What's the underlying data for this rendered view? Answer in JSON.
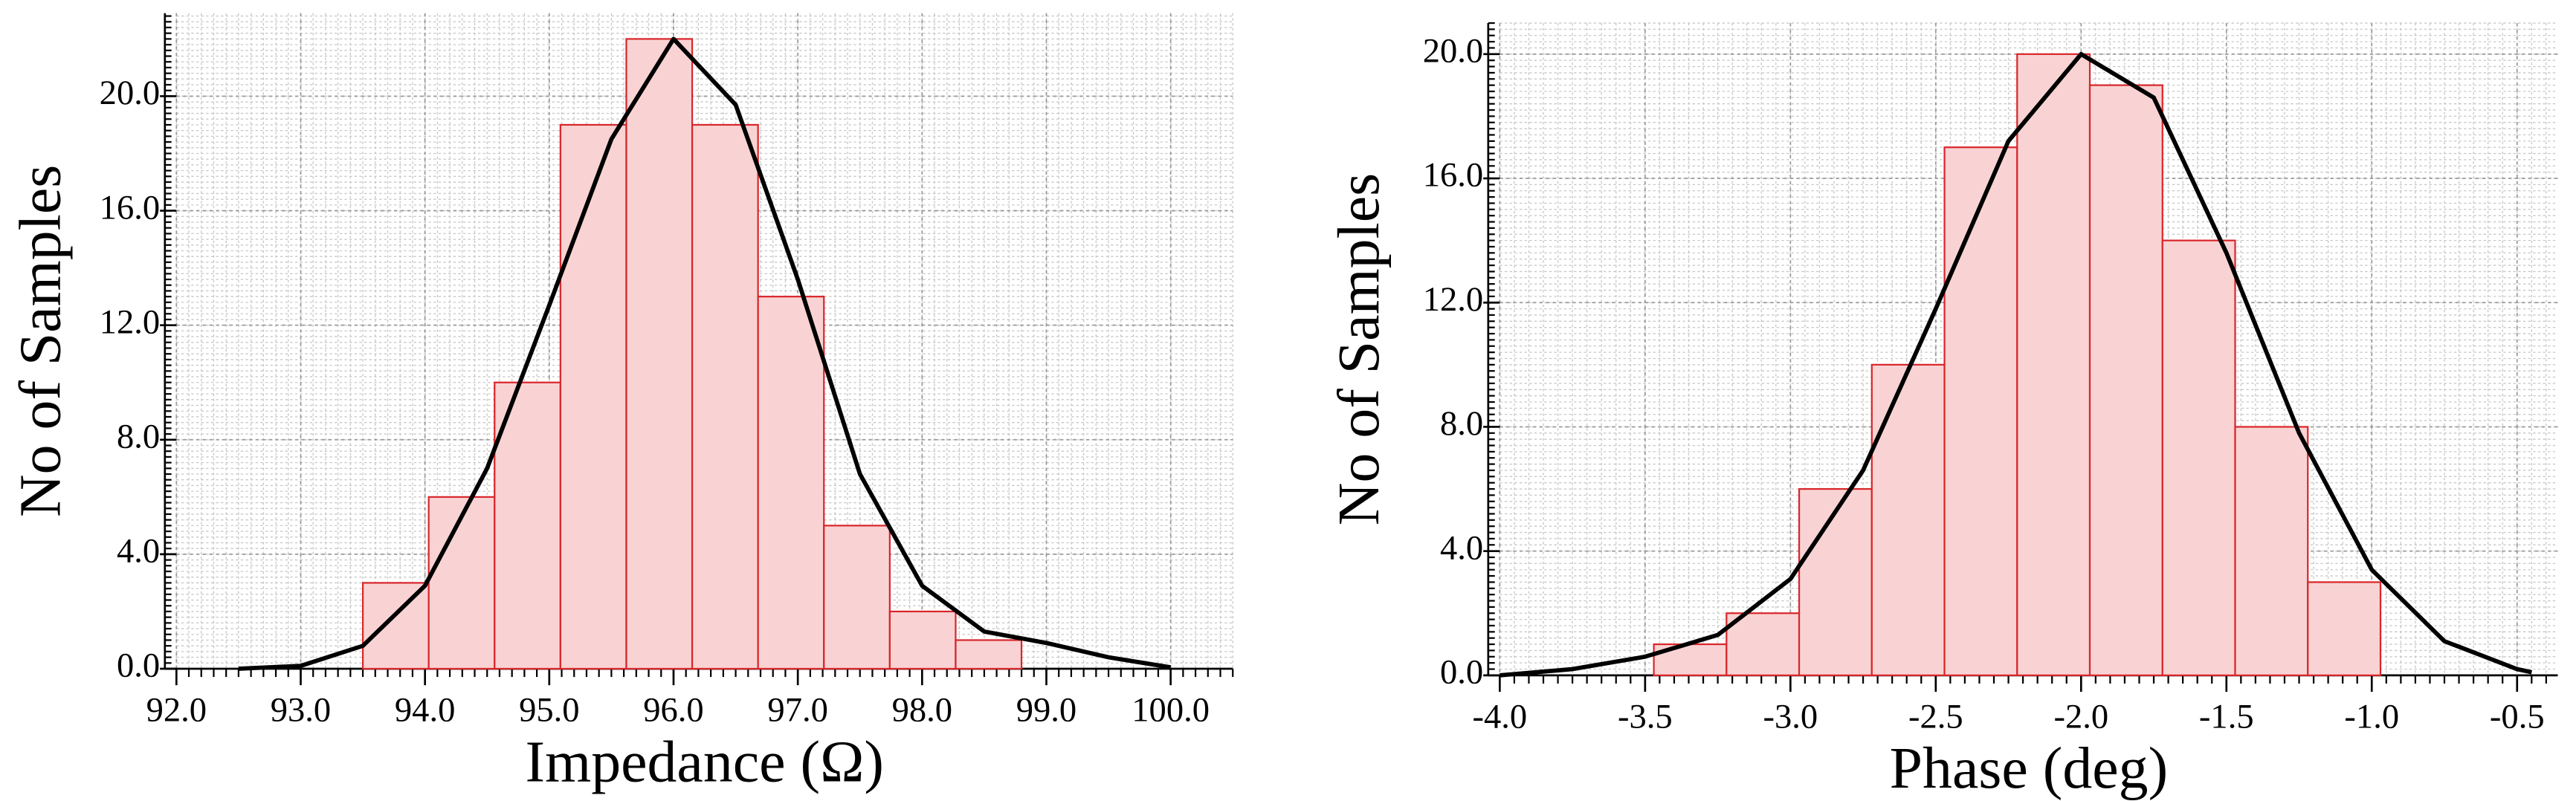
{
  "chart_data": [
    {
      "type": "histogram",
      "xlabel": "Impedance (Ω)",
      "ylabel": "No of Samples",
      "bins": [
        93.5,
        94.03,
        94.56,
        95.09,
        95.62,
        96.15,
        96.68,
        97.21,
        97.74,
        98.27,
        98.8
      ],
      "counts": [
        3,
        6,
        10,
        19,
        22,
        19,
        13,
        5,
        2,
        1
      ],
      "color": "#f9d3d3",
      "edge_color": "#d9262b",
      "curve": {
        "x": [
          92.5,
          93,
          93.5,
          94,
          94.5,
          95,
          95.5,
          96,
          96.5,
          97,
          97.5,
          98,
          98.5,
          99,
          99.5,
          100
        ],
        "y": [
          0,
          0.1,
          0.8,
          2.9,
          7.0,
          12.7,
          18.5,
          22.0,
          19.7,
          13.6,
          6.8,
          2.9,
          1.3,
          0.9,
          0.4,
          0.05
        ],
        "color": "#000000"
      },
      "xlim": [
        92,
        100.5
      ],
      "ylim": [
        0,
        22.9
      ],
      "xticks": [
        {
          "value": 92,
          "label": "92.0"
        },
        {
          "value": 93,
          "label": "93.0"
        },
        {
          "value": 94,
          "label": "94.0"
        },
        {
          "value": 95,
          "label": "95.0"
        },
        {
          "value": 96,
          "label": "96.0"
        },
        {
          "value": 97,
          "label": "97.0"
        },
        {
          "value": 98,
          "label": "98.0"
        },
        {
          "value": 99,
          "label": "99.0"
        },
        {
          "value": 100,
          "label": "100.0"
        }
      ],
      "yticks": [
        {
          "value": 0,
          "label": "0.0"
        },
        {
          "value": 4,
          "label": "4.0"
        },
        {
          "value": 8,
          "label": "8.0"
        },
        {
          "value": 12,
          "label": "12.0"
        },
        {
          "value": 16,
          "label": "16.0"
        },
        {
          "value": 20,
          "label": "20.0"
        }
      ],
      "grid": true,
      "minor_grid": true
    },
    {
      "type": "histogram",
      "xlabel": "Phase (deg)",
      "ylabel": "No of Samples",
      "bins": [
        -3.47,
        -3.22,
        -2.97,
        -2.72,
        -2.47,
        -2.22,
        -1.97,
        -1.72,
        -1.47,
        -1.22,
        -0.97
      ],
      "counts": [
        1,
        2,
        6,
        10,
        17,
        20,
        19,
        14,
        8,
        3
      ],
      "color": "#f9d3d3",
      "edge_color": "#d9262b",
      "curve": {
        "x": [
          -4.0,
          -3.75,
          -3.5,
          -3.25,
          -3.0,
          -2.75,
          -2.5,
          -2.25,
          -2.0,
          -1.75,
          -1.5,
          -1.25,
          -1.0,
          -0.75,
          -0.5,
          -0.45
        ],
        "y": [
          0,
          0.2,
          0.6,
          1.3,
          3.1,
          6.6,
          11.8,
          17.2,
          20.0,
          18.6,
          13.6,
          7.8,
          3.4,
          1.1,
          0.2,
          0.1
        ],
        "color": "#000000"
      },
      "xlim": [
        -4.0,
        -0.36
      ],
      "ylim": [
        0,
        21
      ],
      "xticks": [
        {
          "value": -4,
          "label": "-4.0"
        },
        -3.5,
        {
          "value": -3,
          "label": "-3.0"
        },
        -2.5,
        {
          "value": -2,
          "label": "-2.0"
        },
        -1.5,
        {
          "value": -1,
          "label": "-1.0"
        },
        -0.5
      ],
      "yticks": [
        {
          "value": 0,
          "label": "0.0"
        },
        {
          "value": 4,
          "label": "4.0"
        },
        {
          "value": 8,
          "label": "8.0"
        },
        {
          "value": 12,
          "label": "12.0"
        },
        {
          "value": 16,
          "label": "16.0"
        },
        {
          "value": 20,
          "label": "20.0"
        }
      ],
      "grid": true,
      "minor_grid": true
    }
  ]
}
